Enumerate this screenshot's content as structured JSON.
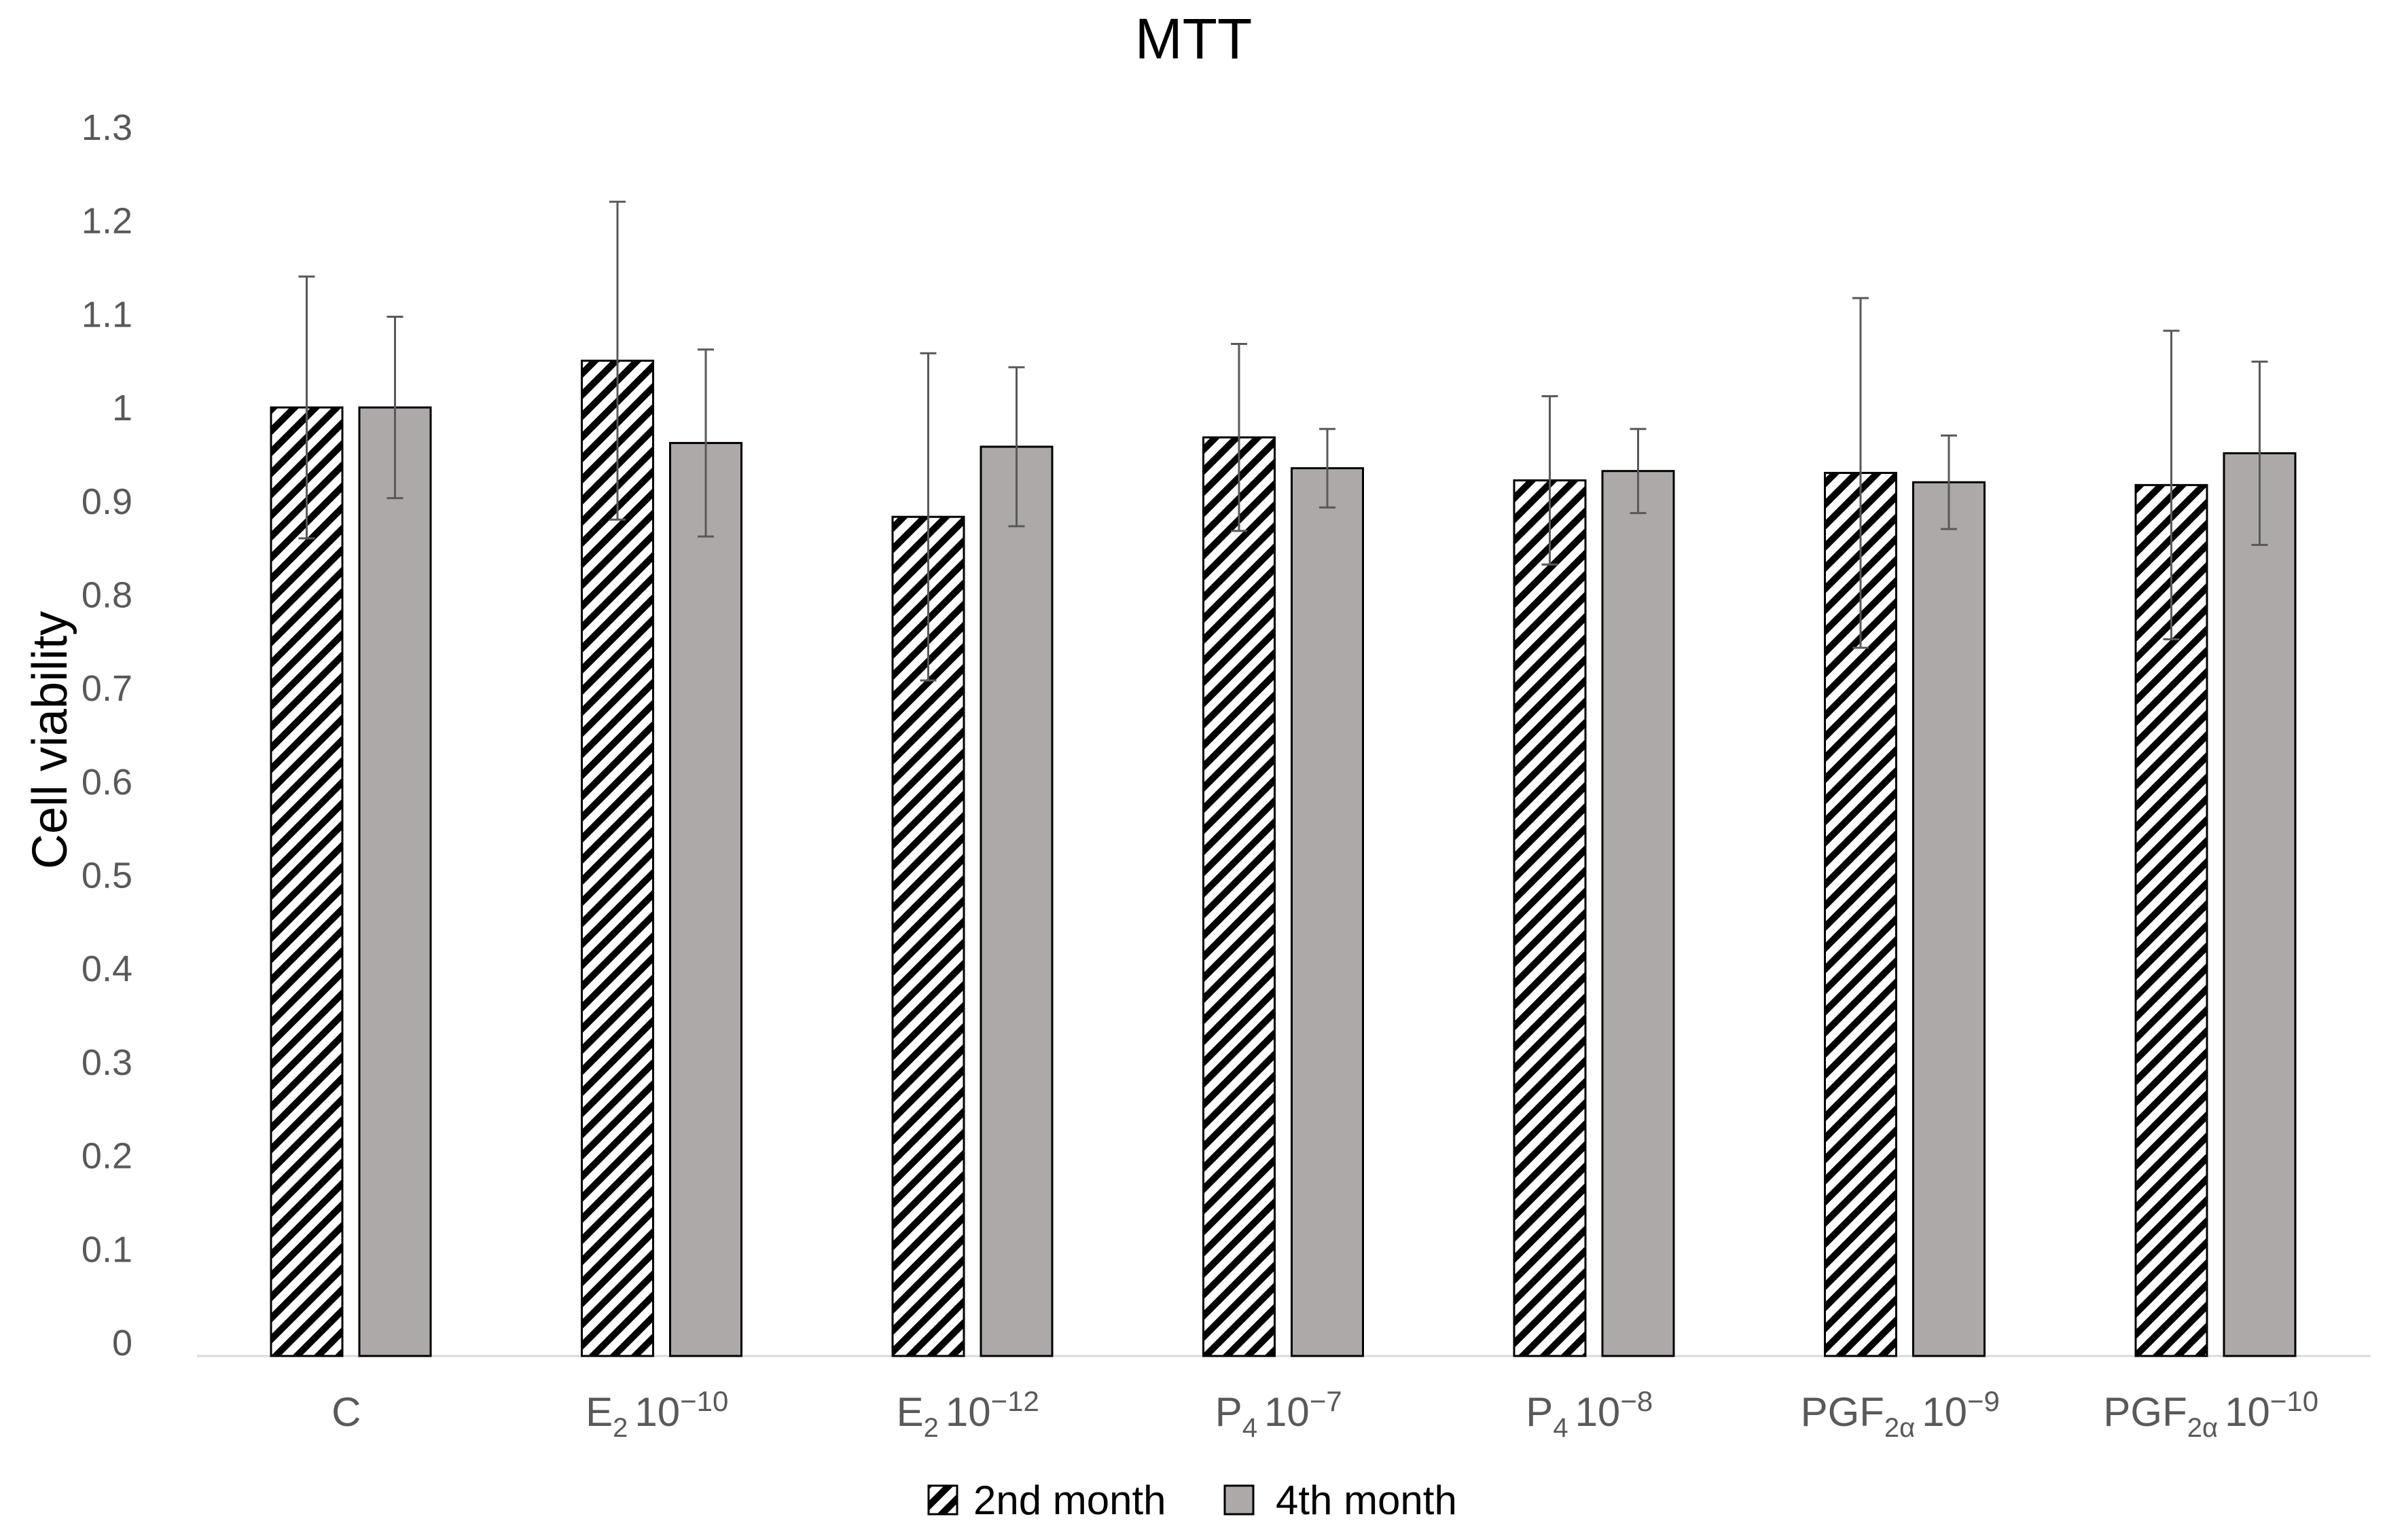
{
  "chart_data": {
    "type": "bar",
    "title": "MTT",
    "xlabel": "",
    "ylabel": "Cell viability",
    "ylim": [
      0,
      1.3
    ],
    "yticks": [
      "0",
      "0.1",
      "0.2",
      "0.3",
      "0.4",
      "0.5",
      "0.6",
      "0.7",
      "0.8",
      "0.9",
      "1",
      "1.1",
      "1.2",
      "1.3"
    ],
    "grid": false,
    "legend_position": "bottom",
    "categories": [
      {
        "base": "C",
        "sub": "",
        "exp": ""
      },
      {
        "base": "E",
        "sub": "2",
        "exp": "10",
        "power": "−10"
      },
      {
        "base": "E",
        "sub": "2",
        "exp": "10",
        "power": "−12"
      },
      {
        "base": "P",
        "sub": "4",
        "exp": "10",
        "power": "−7"
      },
      {
        "base": "P",
        "sub": "4",
        "exp": "10",
        "power": "−8"
      },
      {
        "base": "PGF",
        "sub": "2α",
        "exp": "10",
        "power": "−9"
      },
      {
        "base": "PGF",
        "sub": "2α",
        "exp": "10",
        "power": "−10"
      }
    ],
    "series": [
      {
        "name": "2nd month",
        "pattern": "hatched",
        "values": [
          1.0,
          1.05,
          0.883,
          0.968,
          0.922,
          0.93,
          0.917
        ],
        "errors": [
          0.14,
          0.17,
          0.175,
          0.1,
          0.09,
          0.187,
          0.165
        ]
      },
      {
        "name": "4th month",
        "pattern": "solid",
        "color": "#ada9a8",
        "values": [
          1.0,
          0.962,
          0.958,
          0.935,
          0.932,
          0.92,
          0.951
        ],
        "errors": [
          0.097,
          0.1,
          0.085,
          0.042,
          0.045,
          0.05,
          0.098
        ]
      }
    ]
  }
}
